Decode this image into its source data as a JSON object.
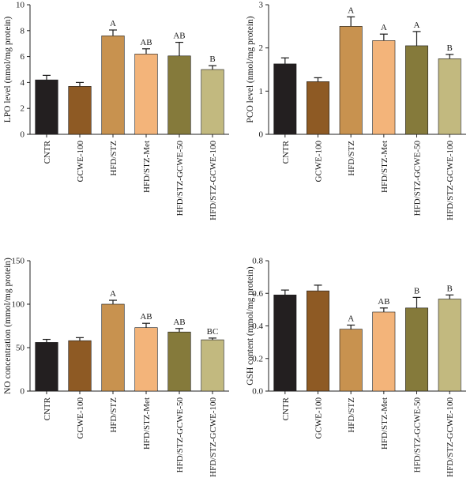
{
  "colors": {
    "CNTR": "#231f20",
    "GCWE-100": "#8e5a24",
    "HFD/STZ": "#c8924f",
    "HFD/STZ-Met": "#f3b47a",
    "HFD/STZ-GCWE-50": "#857a3b",
    "HFD/STZ-GCWE-100": "#c2b97f"
  },
  "chart_data": [
    {
      "type": "bar",
      "ylabel": "LPO level (nmol/mg protein)",
      "ylim": [
        0,
        10
      ],
      "yticks": [
        "0",
        "2",
        "4",
        "6",
        "8",
        "10"
      ],
      "categories": [
        "CNTR",
        "GCWE-100",
        "HFD/STZ",
        "HFD/STZ-Met",
        "HFD/STZ-GCWE-50",
        "HFD/STZ-GCWE-100"
      ],
      "values": [
        4.2,
        3.7,
        7.6,
        6.2,
        6.05,
        5.0
      ],
      "errors": [
        0.35,
        0.3,
        0.45,
        0.4,
        1.05,
        0.3
      ],
      "annotations": [
        "",
        "",
        "A",
        "AB",
        "AB",
        "B"
      ]
    },
    {
      "type": "bar",
      "ylabel": "PCO level (nmol/mg protein)",
      "ylim": [
        0,
        3
      ],
      "yticks": [
        "0",
        "1",
        "2",
        "3"
      ],
      "categories": [
        "CNTR",
        "GCWE-100",
        "HFD/STZ",
        "HFD/STZ-Met",
        "HFD/STZ-GCWE-50",
        "HFD/STZ-GCWE-100"
      ],
      "values": [
        1.63,
        1.22,
        2.5,
        2.17,
        2.05,
        1.75
      ],
      "errors": [
        0.14,
        0.09,
        0.22,
        0.15,
        0.33,
        0.1
      ],
      "annotations": [
        "",
        "",
        "A",
        "A",
        "A",
        "B"
      ]
    },
    {
      "type": "bar",
      "ylabel": "NO concentration (mmol/mg protein)",
      "ylim": [
        0,
        150
      ],
      "yticks": [
        "0",
        "50",
        "100",
        "150"
      ],
      "categories": [
        "CNTR",
        "GCWE-100",
        "HFD/STZ",
        "HFD/STZ-Met",
        "HFD/STZ-GCWE-50",
        "HFD/STZ-GCWE-100"
      ],
      "values": [
        56,
        58,
        100,
        73,
        68,
        59
      ],
      "errors": [
        3.5,
        3.5,
        4.5,
        5,
        4,
        2
      ],
      "annotations": [
        "",
        "",
        "A",
        "AB",
        "AB",
        "BC"
      ]
    },
    {
      "type": "bar",
      "ylabel": "GSH content (mmol/mg protein)",
      "ylim": [
        0,
        0.8
      ],
      "yticks": [
        "0.0",
        "0.2",
        "0.4",
        "0.6",
        "0.8"
      ],
      "categories": [
        "CNTR",
        "GCWE-100",
        "HFD/STZ",
        "HFD/STZ-Met",
        "HFD/STZ-GCWE-50",
        "HFD/STZ-GCWE-100"
      ],
      "values": [
        0.59,
        0.615,
        0.38,
        0.485,
        0.51,
        0.565
      ],
      "errors": [
        0.03,
        0.035,
        0.025,
        0.025,
        0.065,
        0.025
      ],
      "annotations": [
        "",
        "",
        "A",
        "AB",
        "B",
        "B"
      ]
    }
  ]
}
